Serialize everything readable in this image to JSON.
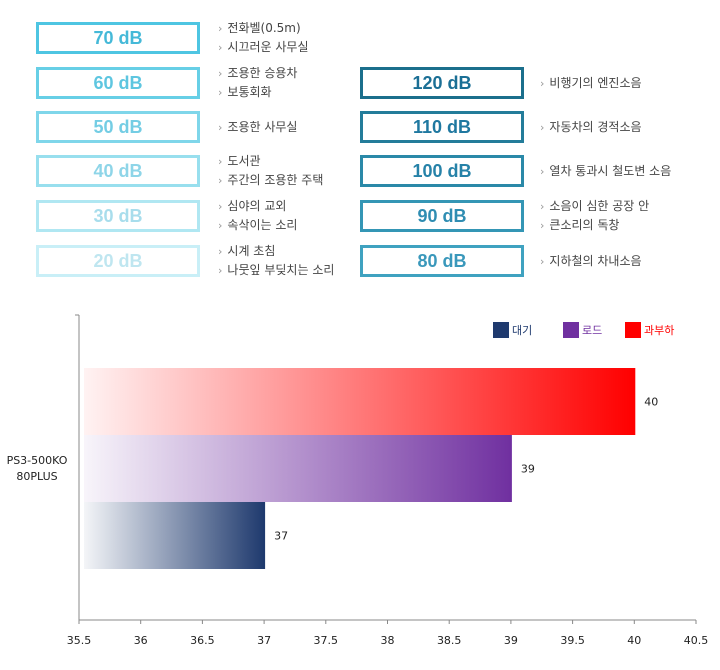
{
  "noise_table": {
    "left": [
      {
        "level": "70 dB",
        "lines": [
          "전화벨(0.5m)",
          "시끄러운 사무실"
        ],
        "border": "#4ec5e2",
        "text_color": "#45b9d8"
      },
      {
        "level": "60 dB",
        "lines": [
          "조용한 승용차",
          "보통회화"
        ],
        "border": "#67cfe6",
        "text_color": "#5ec6e0"
      },
      {
        "level": "50 dB",
        "lines": [
          "조용한 사무실"
        ],
        "border": "#7fd6ea",
        "text_color": "#74cde4"
      },
      {
        "level": "40 dB",
        "lines": [
          "도서관",
          "주간의 조용한 주택"
        ],
        "border": "#98dfee",
        "text_color": "#8ed5e8"
      },
      {
        "level": "30 dB",
        "lines": [
          "심야의 교외",
          "속삭이는 소리"
        ],
        "border": "#b0e7f2",
        "text_color": "#a8ddec"
      },
      {
        "level": "20 dB",
        "lines": [
          "시계 초침",
          "나뭇잎 부딪치는 소리"
        ],
        "border": "#c9eff7",
        "text_color": "#bfe6f0"
      }
    ],
    "right": [
      {
        "level": "120 dB",
        "lines": [
          "비행기의 엔진소음"
        ],
        "border": "#1b6f8c",
        "text_color": "#1b6f95"
      },
      {
        "level": "110 dB",
        "lines": [
          "자동차의 경적소음"
        ],
        "border": "#237c9a",
        "text_color": "#1f78a0"
      },
      {
        "level": "100 dB",
        "lines": [
          "열차 통과시 철도변 소음"
        ],
        "border": "#2a89a8",
        "text_color": "#2682a8"
      },
      {
        "level": "90 dB",
        "lines": [
          "소음이 심한 공장 안",
          "큰소리의 독창"
        ],
        "border": "#3496b5",
        "text_color": "#2f8db2"
      },
      {
        "level": "80 dB",
        "lines": [
          "지하철의 차내소음"
        ],
        "border": "#3fa2c0",
        "text_color": "#3a98bb"
      }
    ]
  },
  "chart_data": {
    "type": "bar",
    "orientation": "horizontal",
    "categories": [
      "PS3-500KO 80PLUS"
    ],
    "category_label_lines": [
      "PS3-500KO",
      "80PLUS"
    ],
    "series": [
      {
        "name": "대기",
        "values": [
          37
        ],
        "color": "#1f3a6e",
        "legend_text_color": "#1f3a6e"
      },
      {
        "name": "로드",
        "values": [
          39
        ],
        "color": "#7030a0",
        "legend_text_color": "#7030a0"
      },
      {
        "name": "과부하",
        "values": [
          40
        ],
        "color": "#ff0000",
        "legend_text_color": "#ff0000"
      }
    ],
    "xlim": [
      35.5,
      40.5
    ],
    "x_ticks": [
      "35.5",
      "36",
      "36.5",
      "37",
      "37.5",
      "38",
      "38.5",
      "39",
      "39.5",
      "40",
      "40.5"
    ],
    "data_labels": [
      "37",
      "39",
      "40"
    ],
    "legend_position": "top-right",
    "grid": false
  }
}
